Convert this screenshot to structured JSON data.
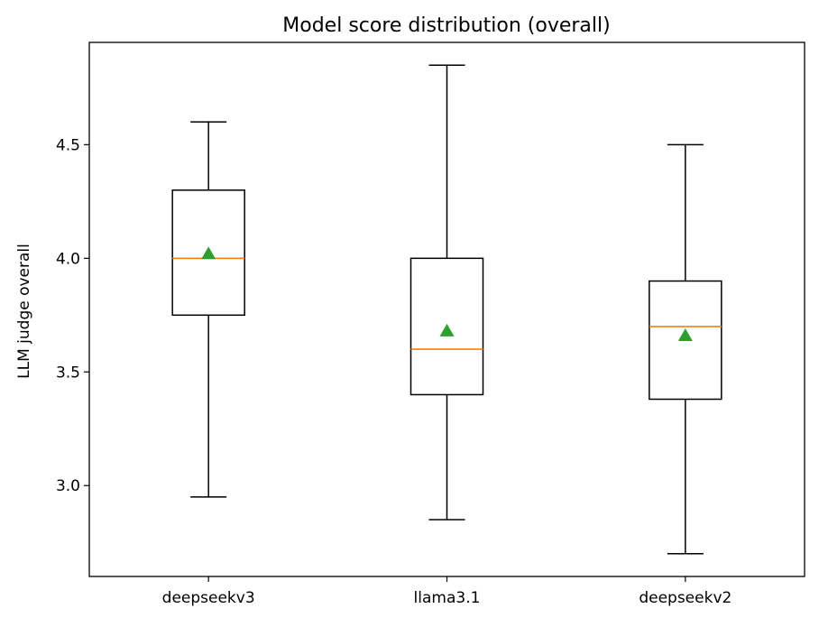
{
  "chart_data": {
    "type": "box",
    "title": "Model score distribution (overall)",
    "xlabel": "",
    "ylabel": "LLM judge overall",
    "ylim": [
      2.6,
      4.95
    ],
    "yticks": [
      "3.0",
      "3.5",
      "4.0",
      "4.5"
    ],
    "grid": false,
    "categories": [
      "deepseekv3",
      "llama3.1",
      "deepseekv2"
    ],
    "boxes": [
      {
        "name": "deepseekv3",
        "whisker_low": 2.95,
        "q1": 3.75,
        "median": 4.0,
        "q3": 4.3,
        "whisker_high": 4.6,
        "mean": 4.02
      },
      {
        "name": "llama3.1",
        "whisker_low": 2.85,
        "q1": 3.4,
        "median": 3.6,
        "q3": 4.0,
        "whisker_high": 4.85,
        "mean": 3.68
      },
      {
        "name": "deepseekv2",
        "whisker_low": 2.7,
        "q1": 3.38,
        "median": 3.7,
        "q3": 3.9,
        "whisker_high": 4.5,
        "mean": 3.66
      }
    ],
    "colors": {
      "box": "#000000",
      "median": "#ff7f0e",
      "mean_marker": "#2ca02c"
    }
  }
}
